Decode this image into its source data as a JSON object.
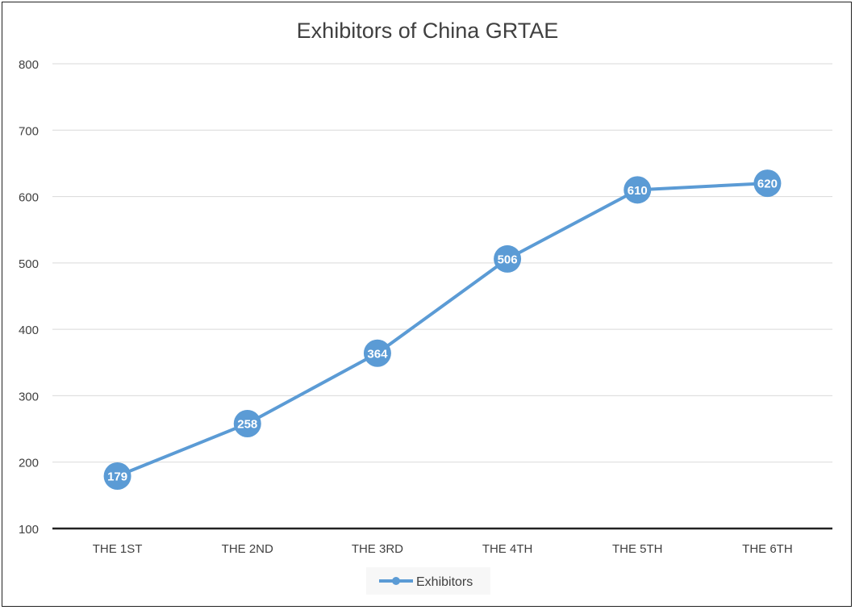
{
  "chart_data": {
    "type": "line",
    "title": "Exhibitors of China GRTAE",
    "categories": [
      "THE 1ST",
      "THE 2ND",
      "THE 3RD",
      "THE 4TH",
      "THE 5TH",
      "THE 6TH"
    ],
    "series": [
      {
        "name": "Exhibitors",
        "values": [
          179,
          258,
          364,
          506,
          610,
          620
        ],
        "color": "#5b9bd5"
      }
    ],
    "ylim": [
      100,
      800
    ],
    "yticks": [
      100,
      200,
      300,
      400,
      500,
      600,
      700,
      800
    ],
    "grid": true,
    "legend": "bottom",
    "data_labels": true
  }
}
